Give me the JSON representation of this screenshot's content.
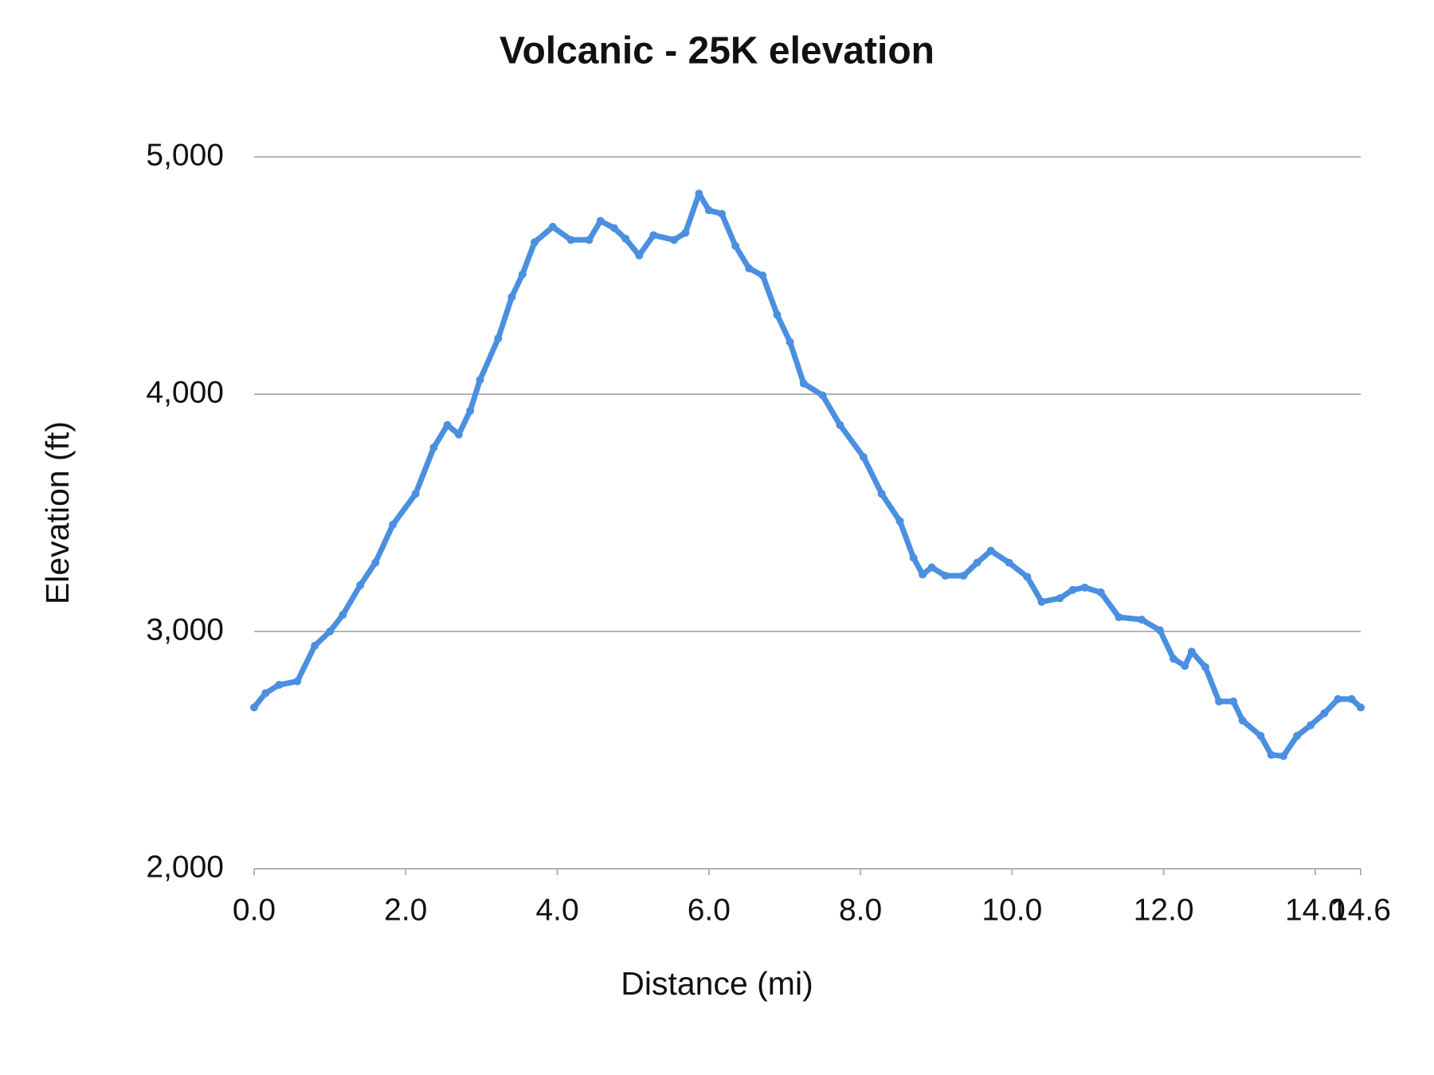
{
  "chart_data": {
    "type": "line",
    "title": "Volcanic - 25K elevation",
    "x_label": "Distance (mi)",
    "y_label": "Elevation (ft)",
    "series": [
      {
        "name": "Elevation",
        "color": "#4a8fe0",
        "x": [
          0,
          0.15,
          0.33,
          0.57,
          0.8,
          1.0,
          1.17,
          1.4,
          1.6,
          1.83,
          2.13,
          2.37,
          2.55,
          2.7,
          2.85,
          2.98,
          3.22,
          3.4,
          3.54,
          3.7,
          3.94,
          4.18,
          4.42,
          4.57,
          4.75,
          4.9,
          5.08,
          5.27,
          5.54,
          5.69,
          5.87,
          6.0,
          6.17,
          6.35,
          6.53,
          6.71,
          6.9,
          7.07,
          7.25,
          7.5,
          7.73,
          8.04,
          8.28,
          8.52,
          8.7,
          8.82,
          8.94,
          9.12,
          9.36,
          9.54,
          9.72,
          9.96,
          10.2,
          10.39,
          10.63,
          10.8,
          10.96,
          11.17,
          11.41,
          11.71,
          11.95,
          12.13,
          12.28,
          12.37,
          12.55,
          12.73,
          12.92,
          13.04,
          13.28,
          13.42,
          13.58,
          13.76,
          13.94,
          14.12,
          14.3,
          14.48,
          14.6
        ],
        "values": [
          2680,
          2740,
          2775,
          2790,
          2940,
          3000,
          3070,
          3195,
          3290,
          3450,
          3580,
          3775,
          3870,
          3830,
          3930,
          4060,
          4235,
          4410,
          4505,
          4640,
          4705,
          4650,
          4650,
          4730,
          4700,
          4655,
          4585,
          4670,
          4650,
          4680,
          4845,
          4775,
          4760,
          4625,
          4530,
          4500,
          4335,
          4220,
          4045,
          3995,
          3870,
          3735,
          3580,
          3465,
          3310,
          3240,
          3270,
          3235,
          3235,
          3290,
          3340,
          3290,
          3230,
          3125,
          3140,
          3175,
          3185,
          3165,
          3060,
          3050,
          3005,
          2885,
          2855,
          2915,
          2850,
          2705,
          2705,
          2625,
          2560,
          2480,
          2475,
          2560,
          2605,
          2655,
          2715,
          2715,
          2680
        ]
      }
    ],
    "xlim": [
      0,
      14.6
    ],
    "xticks": [
      {
        "value": 0,
        "label": "0.0"
      },
      {
        "value": 2,
        "label": "2.0"
      },
      {
        "value": 4,
        "label": "4.0"
      },
      {
        "value": 6,
        "label": "6.0"
      },
      {
        "value": 8,
        "label": "8.0"
      },
      {
        "value": 10,
        "label": "10.0"
      },
      {
        "value": 12,
        "label": "12.0"
      },
      {
        "value": 14,
        "label": "14.0"
      },
      {
        "value": 14.6,
        "label": "14.6"
      }
    ],
    "ylim": [
      2000,
      5000
    ],
    "yticks": [
      {
        "value": 2000,
        "label": "2,000"
      },
      {
        "value": 3000,
        "label": "3,000"
      },
      {
        "value": 4000,
        "label": "4,000"
      },
      {
        "value": 5000,
        "label": "5,000"
      }
    ],
    "grid": true
  }
}
